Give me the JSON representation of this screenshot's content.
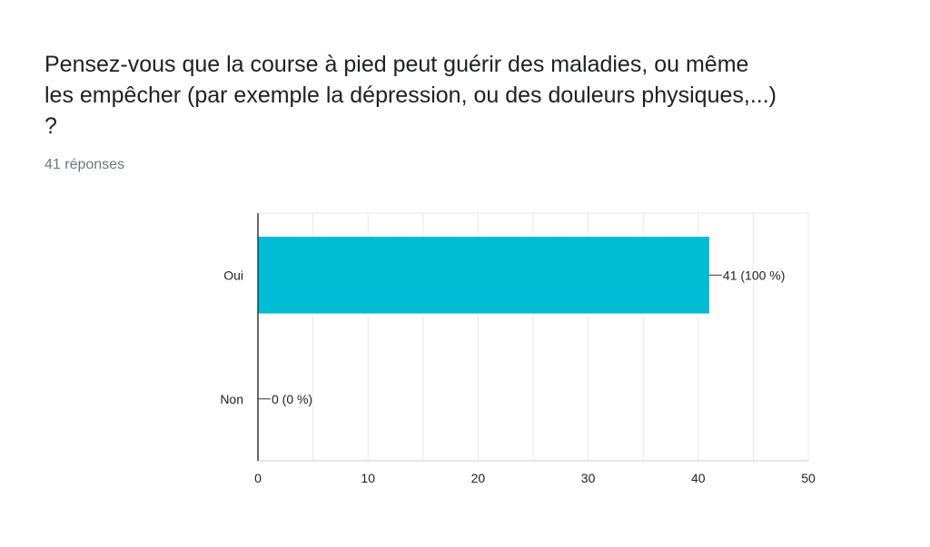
{
  "question": {
    "line1": "Pensez-vous que la course à pied peut guérir des maladies, ou même",
    "line2": "les empêcher (par exemple la dépression, ou des douleurs physiques,...)",
    "line3": "?"
  },
  "response_count": "41 réponses",
  "colors": {
    "bar": "#00bcd4",
    "grid": "#e8e8e8",
    "axis": "#333333"
  },
  "chart_data": {
    "type": "bar",
    "orientation": "horizontal",
    "categories": [
      "Oui",
      "Non"
    ],
    "values": [
      41,
      0
    ],
    "data_labels": [
      "41 (100 %)",
      "0 (0 %)"
    ],
    "xlim": [
      0,
      50
    ],
    "xticks": [
      0,
      10,
      20,
      30,
      40,
      50
    ],
    "grid": true
  }
}
